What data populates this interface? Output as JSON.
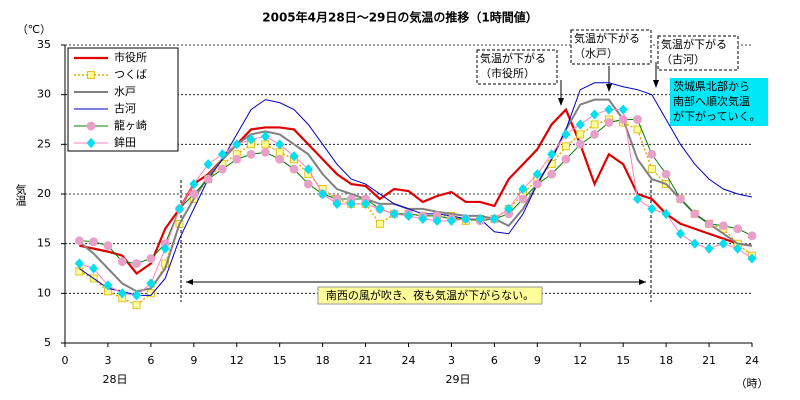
{
  "chart_data": {
    "type": "line",
    "title": "2005年4月28日～29日の気温の推移（1時間値）",
    "y_unit": "（℃）",
    "ylabel": "気温",
    "x_unit": "（時）",
    "day_labels": [
      "28日",
      "29日"
    ],
    "x": [
      1,
      2,
      3,
      4,
      5,
      6,
      7,
      8,
      9,
      10,
      11,
      12,
      13,
      14,
      15,
      16,
      17,
      18,
      19,
      20,
      21,
      22,
      23,
      24,
      25,
      26,
      27,
      28,
      29,
      30,
      31,
      32,
      33,
      34,
      35,
      36,
      37,
      38,
      39,
      40,
      41,
      42,
      43,
      44,
      45,
      46,
      47,
      48
    ],
    "xlim": [
      0,
      48
    ],
    "xticks": [
      0,
      3,
      6,
      9,
      12,
      15,
      18,
      21,
      24,
      {
        "value": 27,
        "label": "3"
      },
      {
        "value": 30,
        "label": "6"
      },
      {
        "value": 33,
        "label": "9"
      },
      {
        "value": 36,
        "label": "12"
      },
      {
        "value": 39,
        "label": "15"
      },
      {
        "value": 42,
        "label": "18"
      },
      {
        "value": 45,
        "label": "21"
      },
      {
        "value": 48,
        "label": "24"
      }
    ],
    "ylim": [
      5,
      35
    ],
    "yticks": [
      5,
      10,
      15,
      20,
      25,
      30,
      35
    ],
    "grid": true,
    "legend": "upper left",
    "series": [
      {
        "name": "市役所",
        "color": "#e00000",
        "width": 2.2,
        "marker": "none",
        "values": [
          14.8,
          14.5,
          14.2,
          13.8,
          12.0,
          13.0,
          16.5,
          18.5,
          21.0,
          22.0,
          23.5,
          25.0,
          26.5,
          26.7,
          26.7,
          26.5,
          25.0,
          23.5,
          22.0,
          21.0,
          20.8,
          19.5,
          20.5,
          20.3,
          19.2,
          19.8,
          20.2,
          19.2,
          19.2,
          18.8,
          21.5,
          23.0,
          24.5,
          27.0,
          28.5,
          25.0,
          21.0,
          24.0,
          23.0,
          20.0,
          19.5,
          18.0,
          17.0,
          16.5,
          16.0,
          15.5,
          15.0,
          14.8
        ]
      },
      {
        "name": "つくば",
        "color": "#e0b000",
        "width": 1.5,
        "dash": "2,2",
        "marker": "square",
        "marker_color": "#ffff99",
        "values": [
          12.2,
          11.5,
          10.2,
          9.5,
          8.8,
          10.0,
          13.0,
          17.0,
          19.5,
          21.5,
          23.0,
          24.0,
          25.0,
          25.0,
          24.2,
          23.5,
          22.0,
          20.5,
          19.5,
          19.0,
          19.0,
          17.0,
          18.0,
          18.0,
          17.8,
          17.8,
          17.8,
          17.3,
          17.5,
          17.5,
          18.5,
          20.0,
          21.5,
          23.0,
          24.8,
          26.0,
          27.0,
          27.5,
          27.2,
          26.5,
          22.5,
          21.0,
          19.5,
          18.0,
          17.0,
          16.5,
          15.0,
          13.8
        ]
      },
      {
        "name": "水戸",
        "color": "#808080",
        "width": 2,
        "marker": "none",
        "values": [
          15.2,
          14.0,
          12.5,
          11.0,
          10.2,
          10.5,
          12.5,
          17.0,
          19.5,
          21.8,
          23.5,
          25.0,
          26.0,
          26.3,
          26.0,
          25.0,
          24.0,
          22.0,
          20.5,
          20.0,
          19.5,
          19.0,
          19.0,
          18.5,
          18.5,
          18.2,
          18.0,
          17.8,
          17.8,
          17.5,
          16.8,
          18.5,
          21.0,
          23.5,
          26.5,
          29.0,
          29.5,
          29.5,
          27.5,
          23.5,
          21.5,
          21.0,
          19.5,
          18.0,
          17.0,
          16.0,
          15.0,
          14.8
        ]
      },
      {
        "name": "古河",
        "color": "#0000c0",
        "width": 1,
        "marker": "none",
        "values": [
          12.5,
          11.5,
          10.5,
          10.2,
          9.8,
          9.8,
          11.5,
          15.5,
          18.5,
          21.5,
          23.5,
          26.0,
          28.5,
          29.5,
          29.2,
          28.5,
          27.0,
          25.0,
          23.0,
          21.5,
          21.0,
          20.0,
          19.0,
          18.5,
          18.0,
          18.0,
          17.8,
          17.5,
          17.5,
          16.2,
          16.0,
          18.0,
          21.0,
          23.5,
          26.5,
          30.5,
          31.2,
          31.2,
          30.8,
          30.5,
          30.0,
          27.5,
          25.0,
          23.0,
          21.5,
          20.5,
          20.0,
          19.7
        ]
      },
      {
        "name": "龍ヶ崎",
        "color": "#008000",
        "width": 1,
        "marker": "circle",
        "marker_color": "#e8a0c8",
        "values": [
          15.3,
          15.2,
          14.8,
          13.2,
          13.0,
          13.5,
          15.0,
          18.5,
          20.0,
          21.5,
          22.5,
          23.5,
          24.0,
          24.2,
          23.5,
          22.5,
          21.0,
          20.0,
          19.5,
          19.5,
          19.5,
          18.5,
          18.0,
          18.0,
          17.8,
          17.8,
          17.5,
          17.5,
          17.3,
          17.5,
          18.0,
          19.5,
          21.0,
          22.0,
          23.5,
          25.0,
          26.0,
          27.2,
          27.5,
          27.5,
          24.0,
          22.0,
          19.5,
          18.0,
          17.0,
          16.8,
          16.5,
          15.8
        ]
      },
      {
        "name": "鉾田",
        "color": "#ff80c0",
        "width": 1,
        "marker": "diamond",
        "marker_color": "#00e0f0",
        "values": [
          13.0,
          12.5,
          10.8,
          10.0,
          9.8,
          11.0,
          14.5,
          18.5,
          21.0,
          23.0,
          24.0,
          25.0,
          25.5,
          25.8,
          25.0,
          23.8,
          22.5,
          20.0,
          19.0,
          19.0,
          19.0,
          18.5,
          18.0,
          17.8,
          17.5,
          17.3,
          17.3,
          17.5,
          17.5,
          17.5,
          18.5,
          20.5,
          22.0,
          24.0,
          26.0,
          27.0,
          28.0,
          28.5,
          28.5,
          19.5,
          18.5,
          18.0,
          16.0,
          15.0,
          14.5,
          15.0,
          14.5,
          13.5
        ]
      }
    ],
    "annotations": [
      {
        "lines": [
          "気温が下がる",
          "（市役所）"
        ]
      },
      {
        "lines": [
          "気温が下がる",
          "（水戸）"
        ]
      },
      {
        "lines": [
          "気温が下がる",
          "（古河）"
        ]
      }
    ],
    "note": {
      "lines": [
        "茨城県北部から",
        "南部へ順次気温",
        "が下がっていく。"
      ]
    },
    "wind_note": "南西の風が吹き、夜も気温が下がらない。"
  }
}
